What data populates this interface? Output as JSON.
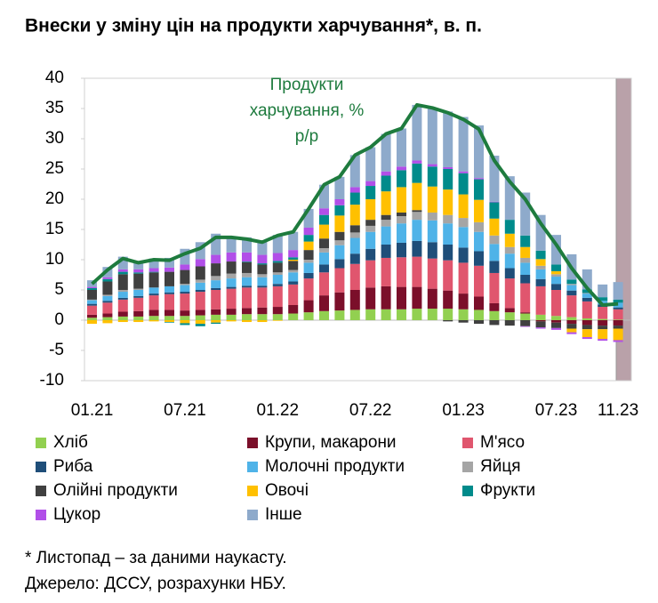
{
  "chart_data": {
    "type": "bar",
    "stacked": true,
    "title": "Внески у зміну цін на продукти харчування*, в. п.",
    "annotation": [
      "Продукти",
      "харчування, %",
      "р/р"
    ],
    "footnote": "* Листопад – за даними наукасту.",
    "source": "Джерело: ДССУ, розрахунки НБУ.",
    "categories": [
      "01.21",
      null,
      null,
      null,
      null,
      null,
      "07.21",
      null,
      null,
      null,
      null,
      null,
      "01.22",
      null,
      null,
      null,
      null,
      null,
      "07.22",
      null,
      null,
      null,
      null,
      null,
      "01.23",
      null,
      null,
      null,
      null,
      null,
      "07.23",
      null,
      null,
      null,
      "11.23"
    ],
    "ylim": [
      -10,
      40
    ],
    "yticks": [
      -10,
      -5,
      0,
      5,
      10,
      15,
      20,
      25,
      30,
      35,
      40
    ],
    "series": [
      {
        "name": "Хліб",
        "color": "#92d050",
        "values": [
          0.4,
          0.5,
          0.6,
          0.6,
          0.7,
          0.7,
          0.7,
          0.8,
          0.9,
          0.9,
          1.0,
          1.0,
          1.0,
          1.1,
          1.3,
          1.5,
          1.6,
          1.7,
          1.8,
          1.8,
          1.8,
          1.9,
          1.9,
          1.9,
          1.8,
          1.7,
          1.5,
          1.3,
          1.1,
          0.9,
          0.7,
          0.5,
          0.3,
          0.2,
          0.1
        ]
      },
      {
        "name": "Крупи, макарони",
        "color": "#7b0f2a",
        "values": [
          0.5,
          0.6,
          0.8,
          0.9,
          1.0,
          1.0,
          0.9,
          0.9,
          0.9,
          1.0,
          1.0,
          1.1,
          1.2,
          1.4,
          2.0,
          2.6,
          3.0,
          3.3,
          3.6,
          3.8,
          3.7,
          3.6,
          3.3,
          3.0,
          2.6,
          2.2,
          1.3,
          0.7,
          0.2,
          -0.2,
          -0.4,
          -0.6,
          -0.8,
          -0.9,
          -0.9
        ]
      },
      {
        "name": "М'ясо",
        "color": "#e0566e",
        "values": [
          1.5,
          1.8,
          2.0,
          2.2,
          2.4,
          2.6,
          2.8,
          3.0,
          3.2,
          3.3,
          3.4,
          3.3,
          3.4,
          3.4,
          3.6,
          3.8,
          4.0,
          4.3,
          4.5,
          4.7,
          4.9,
          5.0,
          5.0,
          5.0,
          5.1,
          5.1,
          5.0,
          4.9,
          4.8,
          4.7,
          4.3,
          3.6,
          2.8,
          2.0,
          1.7
        ]
      },
      {
        "name": "Риба",
        "color": "#1f4e79",
        "values": [
          0.3,
          0.3,
          0.3,
          0.3,
          0.3,
          0.3,
          0.3,
          0.3,
          0.3,
          0.3,
          0.3,
          0.3,
          0.4,
          0.5,
          0.9,
          1.3,
          1.5,
          1.7,
          1.9,
          2.2,
          2.4,
          2.6,
          2.7,
          2.6,
          2.5,
          2.4,
          2.0,
          1.7,
          1.4,
          1.2,
          1.0,
          0.8,
          0.6,
          0.4,
          0.3
        ]
      },
      {
        "name": "Молочні продукти",
        "color": "#4fb3e8",
        "values": [
          0.6,
          0.8,
          1.0,
          1.0,
          1.0,
          1.0,
          1.1,
          1.2,
          1.3,
          1.4,
          1.4,
          1.4,
          1.5,
          1.5,
          1.7,
          2.0,
          2.3,
          2.6,
          2.8,
          3.0,
          3.2,
          3.5,
          3.6,
          3.5,
          3.4,
          3.2,
          2.8,
          2.4,
          2.0,
          1.6,
          1.2,
          0.9,
          0.7,
          0.6,
          0.8
        ]
      },
      {
        "name": "Яйця",
        "color": "#a5a5a5",
        "values": [
          0.1,
          0.2,
          0.3,
          0.2,
          0.0,
          0.0,
          0.2,
          0.5,
          0.7,
          0.8,
          0.7,
          0.5,
          0.4,
          0.4,
          0.5,
          0.7,
          0.8,
          0.9,
          1.0,
          1.1,
          1.2,
          1.3,
          1.3,
          1.4,
          1.5,
          1.6,
          1.4,
          1.1,
          0.8,
          0.6,
          0.4,
          0.2,
          0.1,
          0.0,
          0.0
        ]
      },
      {
        "name": "Олійні продукти",
        "color": "#404040",
        "values": [
          1.6,
          2.2,
          2.6,
          2.5,
          2.5,
          2.4,
          2.3,
          2.2,
          2.1,
          2.0,
          1.8,
          1.6,
          1.6,
          1.5,
          1.6,
          1.6,
          1.4,
          1.2,
          1.0,
          0.8,
          0.6,
          0.3,
          0.0,
          -0.2,
          -0.4,
          -0.6,
          -0.8,
          -0.9,
          -1.0,
          -1.0,
          -0.9,
          -0.8,
          -0.7,
          -0.6,
          -0.5
        ]
      },
      {
        "name": "Овочі",
        "color": "#ffc000",
        "values": [
          -0.6,
          -0.5,
          -0.3,
          -0.3,
          -0.2,
          -0.3,
          -0.5,
          -0.6,
          -0.4,
          -0.2,
          -0.3,
          -0.3,
          -0.1,
          0.2,
          1.4,
          2.3,
          2.7,
          3.4,
          3.4,
          3.9,
          4.2,
          4.5,
          4.3,
          4.2,
          3.9,
          3.7,
          2.8,
          2.2,
          1.8,
          1.1,
          0.5,
          -0.6,
          -1.3,
          -1.6,
          -1.9
        ]
      },
      {
        "name": "Фрукти",
        "color": "#008b8b",
        "values": [
          0.3,
          0.4,
          0.4,
          0.2,
          0.1,
          -0.1,
          -0.3,
          -0.4,
          -0.2,
          0.0,
          0.1,
          0.2,
          0.3,
          0.4,
          1.1,
          1.6,
          1.7,
          2.0,
          2.2,
          2.6,
          2.8,
          3.2,
          3.3,
          3.4,
          3.5,
          3.4,
          2.7,
          2.3,
          1.9,
          1.4,
          1.1,
          0.7,
          0.6,
          0.6,
          0.5
        ]
      },
      {
        "name": "Цукор",
        "color": "#b14fe8",
        "values": [
          0.2,
          0.3,
          0.4,
          0.5,
          0.6,
          0.7,
          0.9,
          1.2,
          1.4,
          1.5,
          1.5,
          1.4,
          1.3,
          1.2,
          1.2,
          1.1,
          1.0,
          0.9,
          0.8,
          0.7,
          0.6,
          0.5,
          0.4,
          0.3,
          0.3,
          0.2,
          0.1,
          0.0,
          -0.1,
          -0.2,
          -0.3,
          -0.3,
          -0.3,
          -0.3,
          -0.3
        ]
      },
      {
        "name": "Інше",
        "color": "#8eaacb",
        "values": [
          1.1,
          1.7,
          2.1,
          1.4,
          1.6,
          1.6,
          2.6,
          2.8,
          3.5,
          2.7,
          2.5,
          2.4,
          3.0,
          3.0,
          3.1,
          3.9,
          3.7,
          5.3,
          5.6,
          6.2,
          6.3,
          9.2,
          9.3,
          9.2,
          9.0,
          8.7,
          7.6,
          7.2,
          7.1,
          5.9,
          4.9,
          4.2,
          3.3,
          2.1,
          2.9
        ]
      }
    ],
    "line": {
      "color": "#1e7b3e",
      "values": [
        6.0,
        8.3,
        10.2,
        9.5,
        10.0,
        9.9,
        11.0,
        11.9,
        13.7,
        13.7,
        13.4,
        12.9,
        14.0,
        14.6,
        18.4,
        22.4,
        23.7,
        27.3,
        28.6,
        30.8,
        31.7,
        35.6,
        35.1,
        34.3,
        33.2,
        31.6,
        26.4,
        22.9,
        20.0,
        16.0,
        12.5,
        8.6,
        5.3,
        2.5,
        2.7
      ]
    }
  }
}
